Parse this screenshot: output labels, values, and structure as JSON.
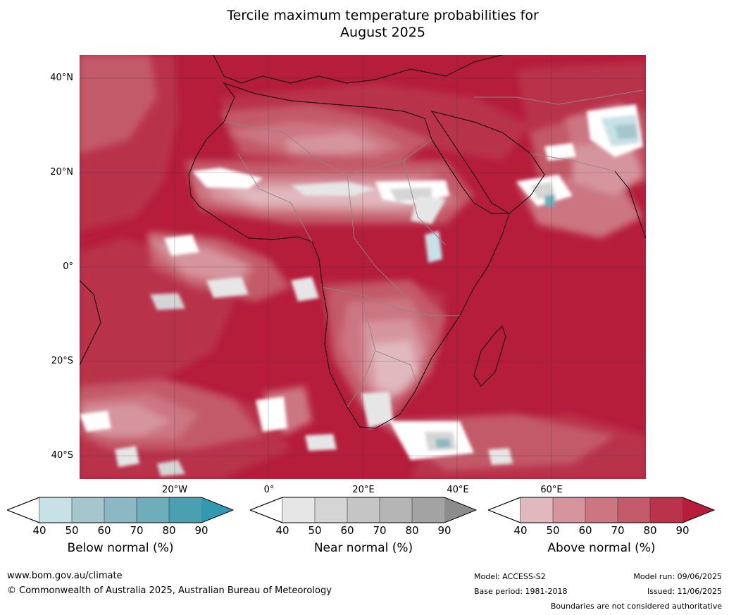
{
  "title_line1": "Tercile maximum temperature probabilities for",
  "title_line2": "August 2025",
  "lat_labels": [
    "40°N",
    "20°N",
    "0°",
    "20°S",
    "40°S"
  ],
  "lon_labels": [
    "20°W",
    "0°",
    "20°E",
    "40°E",
    "60°E"
  ],
  "colorbars": [
    {
      "label": "Below normal (%)",
      "ticks": [
        "40",
        "50",
        "60",
        "70",
        "80",
        "90"
      ],
      "colors": [
        "#c8e1e7",
        "#a6c6cd",
        "#8bb8c3",
        "#6eadba",
        "#4a9fb1"
      ],
      "extend": "#3399b0"
    },
    {
      "label": "Near normal (%)",
      "ticks": [
        "40",
        "50",
        "60",
        "70",
        "80",
        "90"
      ],
      "colors": [
        "#e6e6e6",
        "#d5d5d5",
        "#c5c5c5",
        "#b5b5b5",
        "#a3a3a3"
      ],
      "extend": "#8c8c8c"
    },
    {
      "label": "Above normal (%)",
      "ticks": [
        "40",
        "50",
        "60",
        "70",
        "80",
        "90"
      ],
      "colors": [
        "#e0b8be",
        "#d6959e",
        "#cc7682",
        "#c35a69",
        "#b9344b"
      ],
      "extend": "#b51d3b"
    }
  ],
  "footer": {
    "website": "www.bom.gov.au/climate",
    "copyright": "© Commonwealth of Australia 2025, Australian Bureau of Meteorology",
    "model": "Model: ACCESS-S2",
    "base_period": "Base period: 1981-2018",
    "model_run": "Model run: 09/06/2025",
    "issued": "Issued: 11/06/2025",
    "disclaimer": "Boundaries are not considered authoritative"
  }
}
